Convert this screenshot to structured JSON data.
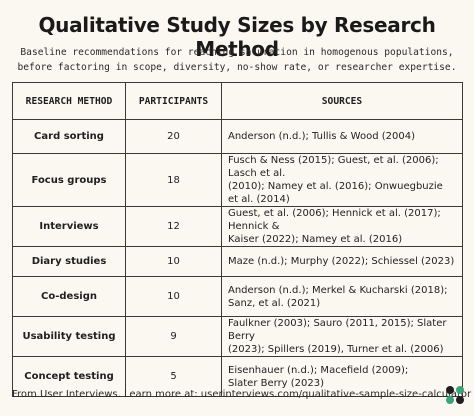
{
  "title": "Qualitative Study Sizes by Research Method",
  "subtitle": {
    "line1": "Baseline recommendations for reaching saturation in homogenous populations,",
    "line2": "before factoring in scope, diversity, no-show rate, or researcher expertise."
  },
  "table": {
    "headers": {
      "method": "RESEARCH METHOD",
      "participants": "PARTICIPANTS",
      "sources": "SOURCES"
    },
    "rows": [
      {
        "method": "Card sorting",
        "participants": "20",
        "sources": [
          "Anderson (n.d.); Tullis & Wood (2004)"
        ]
      },
      {
        "method": "Focus groups",
        "participants": "18",
        "sources": [
          "Fusch & Ness (2015); Guest, et al. (2006); Lasch et al.",
          "(2010); Namey et al. (2016); Onwuegbuzie et al. (2014)"
        ]
      },
      {
        "method": "Interviews",
        "participants": "12",
        "sources": [
          "Guest, et al. (2006); Hennick et al. (2017); Hennick &",
          "Kaiser (2022); Namey et al. (2016)"
        ]
      },
      {
        "method": "Diary studies",
        "participants": "10",
        "sources": [
          "Maze (n.d.); Murphy (2022); Schiessel (2023)"
        ]
      },
      {
        "method": "Co-design",
        "participants": "10",
        "sources": [
          "Anderson (n.d.); Merkel & Kucharski (2018);",
          "Sanz, et al. (2021)"
        ]
      },
      {
        "method": "Usability testing",
        "participants": "9",
        "sources": [
          "Faulkner (2003); Sauro (2011, 2015); Slater Berry",
          "(2023); Spillers (2019), Turner et al. (2006)"
        ]
      },
      {
        "method": "Concept testing",
        "participants": "5",
        "sources": [
          "Eisenhauer (n.d.); Macefield (2009);",
          "Slater Berry (2023)"
        ]
      }
    ]
  },
  "footer": {
    "text": "From User Interviews. Learn more at: userinterviews.com/qualitative-sample-size-calculator"
  },
  "logo": {
    "icon": "user-interviews-logo-icon",
    "colors": [
      "#1f1f1f",
      "#3aa57a"
    ]
  }
}
